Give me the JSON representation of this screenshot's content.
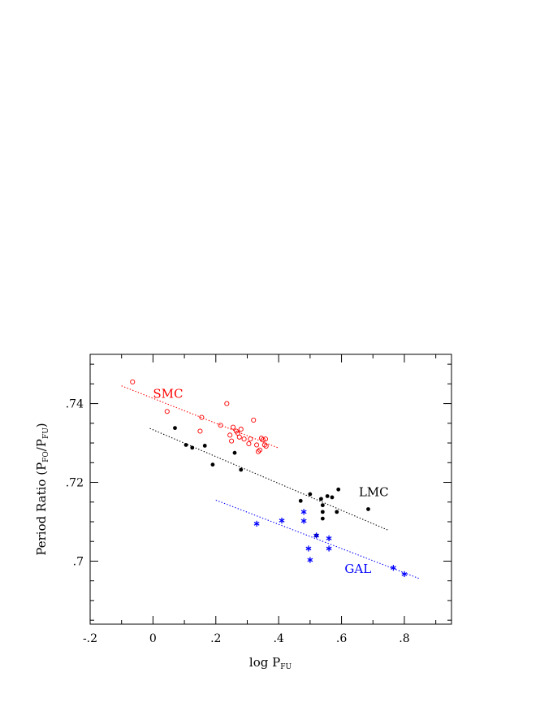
{
  "chart_data": {
    "type": "scatter",
    "title": "",
    "xlabel": {
      "main": "log P",
      "sub": "FU"
    },
    "ylabel": {
      "prefix": "Period Ratio (P",
      "sub1": "FO",
      "mid": "/P",
      "sub2": "FU",
      "suffix": ")"
    },
    "xlim": [
      -0.2,
      0.95
    ],
    "ylim": [
      0.684,
      0.7525
    ],
    "x_ticks": [
      {
        "value": -0.2,
        "label": "-.2"
      },
      {
        "value": 0.0,
        "label": "0"
      },
      {
        "value": 0.2,
        "label": ".2"
      },
      {
        "value": 0.4,
        "label": ".4"
      },
      {
        "value": 0.6,
        "label": ".6"
      },
      {
        "value": 0.8,
        "label": ".8"
      }
    ],
    "y_ticks": [
      {
        "value": 0.7,
        "label": ".7"
      },
      {
        "value": 0.72,
        "label": ".72"
      },
      {
        "value": 0.74,
        "label": ".74"
      }
    ],
    "x_minor_step": 0.1,
    "y_minor_step": 0.005,
    "series": [
      {
        "name": "SMC",
        "color": "#ff0000",
        "marker": "open-circle",
        "label_pos": [
          0.0,
          0.7415
        ],
        "fit": {
          "x": [
            -0.1,
            0.4
          ],
          "y": [
            0.7445,
            0.7287
          ]
        },
        "points": [
          [
            -0.065,
            0.7455
          ],
          [
            0.045,
            0.738
          ],
          [
            0.155,
            0.7365
          ],
          [
            0.15,
            0.733
          ],
          [
            0.215,
            0.7345
          ],
          [
            0.235,
            0.74
          ],
          [
            0.245,
            0.732
          ],
          [
            0.25,
            0.7305
          ],
          [
            0.255,
            0.734
          ],
          [
            0.265,
            0.733
          ],
          [
            0.27,
            0.7325
          ],
          [
            0.275,
            0.7315
          ],
          [
            0.28,
            0.7335
          ],
          [
            0.29,
            0.731
          ],
          [
            0.31,
            0.731
          ],
          [
            0.305,
            0.7298
          ],
          [
            0.32,
            0.7358
          ],
          [
            0.33,
            0.7295
          ],
          [
            0.335,
            0.7278
          ],
          [
            0.34,
            0.7282
          ],
          [
            0.345,
            0.7312
          ],
          [
            0.35,
            0.7308
          ],
          [
            0.355,
            0.7295
          ],
          [
            0.36,
            0.7292
          ],
          [
            0.358,
            0.731
          ]
        ]
      },
      {
        "name": "LMC",
        "color": "#000000",
        "marker": "filled-circle",
        "label_pos": [
          0.655,
          0.7165
        ],
        "fit": {
          "x": [
            -0.01,
            0.75
          ],
          "y": [
            0.7337,
            0.7078
          ]
        },
        "points": [
          [
            0.07,
            0.7338
          ],
          [
            0.105,
            0.7295
          ],
          [
            0.125,
            0.7288
          ],
          [
            0.165,
            0.7293
          ],
          [
            0.19,
            0.7245
          ],
          [
            0.26,
            0.7275
          ],
          [
            0.28,
            0.7232
          ],
          [
            0.47,
            0.7153
          ],
          [
            0.5,
            0.717
          ],
          [
            0.52,
            0.7065
          ],
          [
            0.535,
            0.7158
          ],
          [
            0.54,
            0.7142
          ],
          [
            0.54,
            0.7125
          ],
          [
            0.54,
            0.7108
          ],
          [
            0.555,
            0.7165
          ],
          [
            0.57,
            0.7162
          ],
          [
            0.585,
            0.7125
          ],
          [
            0.59,
            0.7182
          ],
          [
            0.685,
            0.7132
          ]
        ]
      },
      {
        "name": "GAL",
        "color": "#0000ff",
        "marker": "asterisk",
        "label_pos": [
          0.61,
          0.697
        ],
        "fit": {
          "x": [
            0.2,
            0.85
          ],
          "y": [
            0.7155,
            0.6955
          ]
        },
        "points": [
          [
            0.33,
            0.7095
          ],
          [
            0.41,
            0.7103
          ],
          [
            0.48,
            0.7125
          ],
          [
            0.48,
            0.7102
          ],
          [
            0.495,
            0.7032
          ],
          [
            0.5,
            0.7003
          ],
          [
            0.52,
            0.7065
          ],
          [
            0.56,
            0.7058
          ],
          [
            0.56,
            0.7032
          ],
          [
            0.765,
            0.6983
          ],
          [
            0.8,
            0.6967
          ]
        ]
      }
    ]
  }
}
